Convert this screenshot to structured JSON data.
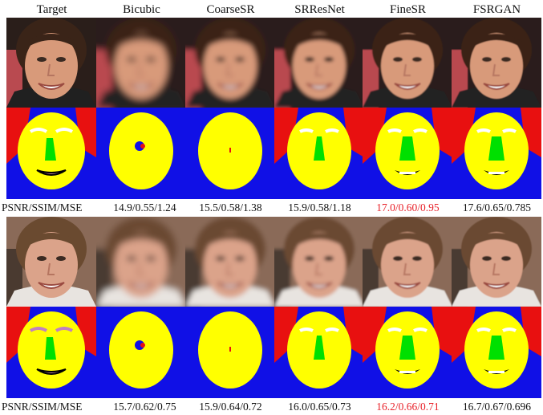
{
  "columns": [
    "Target",
    "Bicubic",
    "CoarseSR",
    "SRResNet",
    "FineSR",
    "FSRGAN"
  ],
  "metric_label": "PSNR/SSIM/MSE",
  "highlight_color": "#e8222a",
  "text_color": "#111111",
  "parsing_colors": {
    "background": "#1010e6",
    "hair": "#e81010",
    "skin": "#ffff00",
    "nose": "#00e000",
    "brows": "#ffffff",
    "mouth": "#000000"
  },
  "examples": [
    {
      "subject": "young man with dark hair, smiling",
      "metrics": [
        "14.9/0.55/1.24",
        "15.5/0.58/1.38",
        "15.9/0.58/1.18",
        "17.0/0.60/0.95",
        "17.6/0.65/0.785"
      ],
      "highlight_index": 3
    },
    {
      "subject": "young woman with brown hair, smiling",
      "metrics": [
        "15.7/0.62/0.75",
        "15.9/0.64/0.72",
        "16.0/0.65/0.73",
        "16.2/0.66/0.71",
        "16.7/0.67/0.696"
      ],
      "highlight_index": 3
    }
  ]
}
